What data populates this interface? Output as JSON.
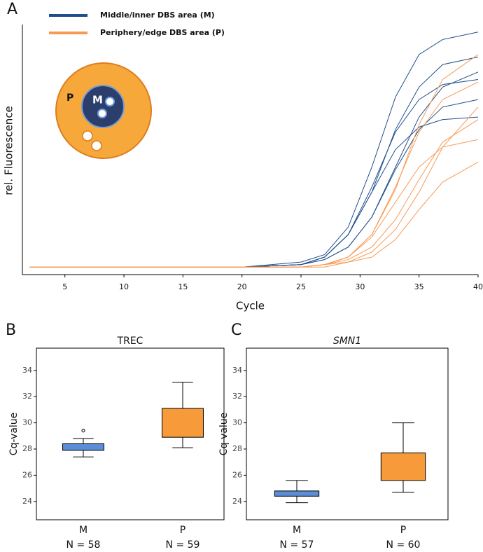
{
  "chart_data": [
    {
      "type": "line",
      "panel_label": "A",
      "xlabel": "Cycle",
      "ylabel": "rel. Fluorescence",
      "xlim": [
        1.4,
        40
      ],
      "ylim": [
        0,
        1
      ],
      "xticks": [
        5,
        10,
        15,
        20,
        25,
        30,
        35,
        40
      ],
      "grid": false,
      "inset": {
        "outer_label": "P",
        "inner_label": "M"
      },
      "x": [
        2,
        5,
        10,
        15,
        20,
        25,
        27,
        29,
        31,
        33,
        35,
        37,
        40
      ],
      "series": [
        {
          "name": "Middle/inner DBS area (M)",
          "color": "#1f4e8c",
          "curves": [
            [
              0.03,
              0.03,
              0.03,
              0.03,
              0.03,
              0.05,
              0.08,
              0.19,
              0.43,
              0.71,
              0.88,
              0.94,
              0.97
            ],
            [
              0.03,
              0.03,
              0.03,
              0.03,
              0.03,
              0.04,
              0.07,
              0.16,
              0.33,
              0.58,
              0.75,
              0.84,
              0.87
            ],
            [
              0.03,
              0.03,
              0.03,
              0.03,
              0.03,
              0.04,
              0.07,
              0.16,
              0.35,
              0.57,
              0.7,
              0.76,
              0.78
            ],
            [
              0.03,
              0.03,
              0.03,
              0.03,
              0.03,
              0.04,
              0.06,
              0.11,
              0.23,
              0.42,
              0.58,
              0.67,
              0.7
            ],
            [
              0.03,
              0.03,
              0.03,
              0.03,
              0.03,
              0.04,
              0.07,
              0.16,
              0.33,
              0.5,
              0.59,
              0.62,
              0.63
            ],
            [
              0.03,
              0.03,
              0.03,
              0.03,
              0.03,
              0.04,
              0.06,
              0.11,
              0.23,
              0.43,
              0.63,
              0.75,
              0.81
            ]
          ]
        },
        {
          "name": "Periphery/edge DBS area (P)",
          "color": "#f79a55",
          "curves": [
            [
              0.03,
              0.03,
              0.03,
              0.03,
              0.03,
              0.03,
              0.04,
              0.07,
              0.16,
              0.34,
              0.6,
              0.78,
              0.88
            ],
            [
              0.03,
              0.03,
              0.03,
              0.03,
              0.03,
              0.03,
              0.04,
              0.07,
              0.16,
              0.35,
              0.57,
              0.7,
              0.77
            ],
            [
              0.03,
              0.03,
              0.03,
              0.03,
              0.03,
              0.03,
              0.04,
              0.06,
              0.11,
              0.22,
              0.38,
              0.53,
              0.62
            ],
            [
              0.03,
              0.03,
              0.03,
              0.03,
              0.03,
              0.03,
              0.04,
              0.07,
              0.15,
              0.29,
              0.43,
              0.51,
              0.54
            ],
            [
              0.03,
              0.03,
              0.03,
              0.03,
              0.03,
              0.03,
              0.03,
              0.05,
              0.07,
              0.14,
              0.26,
              0.37,
              0.45
            ],
            [
              0.03,
              0.03,
              0.03,
              0.03,
              0.03,
              0.03,
              0.04,
              0.05,
              0.09,
              0.18,
              0.33,
              0.51,
              0.67
            ]
          ]
        }
      ]
    },
    {
      "type": "box",
      "panel_label": "B",
      "title": "TREC",
      "ylabel": "Cq-value",
      "ylim": [
        22.6,
        35.7
      ],
      "yticks": [
        24,
        26,
        28,
        30,
        32,
        34
      ],
      "categories": [
        "M",
        "P"
      ],
      "n_labels": [
        "N = 58",
        "N = 59"
      ],
      "colors": [
        "#5b8ed6",
        "#f79a3a"
      ],
      "boxes": [
        {
          "whisker_low": 27.4,
          "q1": 27.9,
          "median": 28.1,
          "q3": 28.4,
          "whisker_high": 28.8,
          "outliers": [
            29.4
          ]
        },
        {
          "whisker_low": 28.1,
          "q1": 28.9,
          "median": 29.8,
          "q3": 31.1,
          "whisker_high": 33.1,
          "outliers": []
        }
      ]
    },
    {
      "type": "box",
      "panel_label": "C",
      "title": "SMN1",
      "title_italic": true,
      "ylabel": "Cq-value",
      "ylim": [
        22.6,
        35.7
      ],
      "yticks": [
        24,
        26,
        28,
        30,
        32,
        34
      ],
      "categories": [
        "M",
        "P"
      ],
      "n_labels": [
        "N = 57",
        "N = 60"
      ],
      "colors": [
        "#5b8ed6",
        "#f79a3a"
      ],
      "boxes": [
        {
          "whisker_low": 23.9,
          "q1": 24.4,
          "median": 24.7,
          "q3": 24.8,
          "whisker_high": 25.6,
          "outliers": []
        },
        {
          "whisker_low": 24.7,
          "q1": 25.6,
          "median": 26.6,
          "q3": 27.7,
          "whisker_high": 30.0,
          "outliers": []
        }
      ]
    }
  ]
}
